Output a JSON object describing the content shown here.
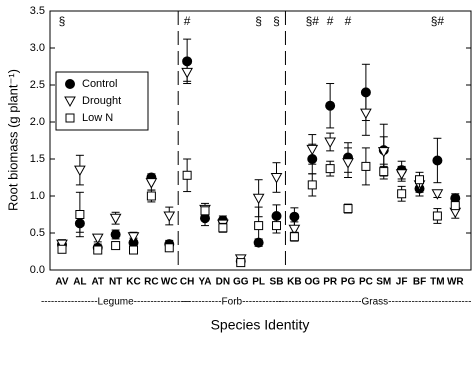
{
  "chart_data": {
    "type": "dot-error",
    "y_label": "Root biomass (g plant⁻¹)",
    "x_label": "Species Identity",
    "categories": [
      "AV",
      "AL",
      "AT",
      "NT",
      "KC",
      "RC",
      "WC",
      "CH",
      "YA",
      "DN",
      "GG",
      "PL",
      "SB",
      "KB",
      "OG",
      "PR",
      "PG",
      "PC",
      "SM",
      "JF",
      "BF",
      "TM",
      "WR"
    ],
    "series": [
      {
        "name": "Control",
        "color": "#000000",
        "marker": "circle",
        "filled": true,
        "values": [
          0.34,
          0.63,
          0.3,
          0.48,
          0.37,
          1.25,
          0.35,
          2.82,
          0.7,
          0.67,
          0.12,
          0.37,
          0.73,
          0.72,
          1.5,
          2.22,
          1.52,
          2.4,
          1.62,
          1.35,
          1.1,
          1.48,
          0.97
        ],
        "errors": [
          0.05,
          0.12,
          0.05,
          0.06,
          0.06,
          0.05,
          0.05,
          0.3,
          0.1,
          0.06,
          0.03,
          0.05,
          0.15,
          0.12,
          0.2,
          0.3,
          0.2,
          0.38,
          0.35,
          0.12,
          0.1,
          0.3,
          0.06
        ]
      },
      {
        "name": "Drought",
        "color": "#000000",
        "marker": "triangle-down",
        "filled": false,
        "values": [
          0.35,
          1.35,
          0.43,
          0.7,
          0.45,
          1.18,
          0.73,
          2.67,
          0.82,
          0.62,
          0.15,
          0.97,
          1.25,
          0.55,
          1.63,
          1.73,
          1.45,
          2.12,
          1.6,
          1.3,
          1.15,
          1.03,
          0.78
        ],
        "errors": [
          0.06,
          0.2,
          0.05,
          0.08,
          0.06,
          0.1,
          0.12,
          0.12,
          0.08,
          0.07,
          0.03,
          0.25,
          0.2,
          0.1,
          0.2,
          0.12,
          0.2,
          0.3,
          0.2,
          0.1,
          0.1,
          0.05,
          0.08
        ]
      },
      {
        "name": "Low N",
        "color": "#000000",
        "marker": "square",
        "filled": false,
        "values": [
          0.28,
          0.75,
          0.27,
          0.33,
          0.27,
          1.0,
          0.3,
          1.28,
          0.8,
          0.57,
          0.1,
          0.6,
          0.6,
          0.45,
          1.15,
          1.37,
          0.83,
          1.4,
          1.33,
          1.03,
          1.22,
          0.73,
          0.87
        ],
        "errors": [
          0.05,
          0.3,
          0.05,
          0.05,
          0.04,
          0.08,
          0.05,
          0.22,
          0.05,
          0.06,
          0.03,
          0.25,
          0.1,
          0.06,
          0.15,
          0.1,
          0.06,
          0.25,
          0.1,
          0.1,
          0.1,
          0.1,
          0.05
        ]
      }
    ],
    "annotations": [
      {
        "text": "§",
        "category": "AV"
      },
      {
        "text": "#",
        "category": "CH"
      },
      {
        "text": "§",
        "category": "PL"
      },
      {
        "text": "§",
        "category": "SB"
      },
      {
        "text": "§#",
        "category": "OG"
      },
      {
        "text": "#",
        "category": "PR"
      },
      {
        "text": "#",
        "category": "PG"
      },
      {
        "text": "§#",
        "category": "TM"
      }
    ],
    "groups": [
      {
        "label": "-----------------Legume-----------------",
        "from": "AV",
        "to": "WC"
      },
      {
        "label": "------------Forb------------",
        "from": "CH",
        "to": "SB"
      },
      {
        "label": "-------------------------Grass-------------------------",
        "from": "KB",
        "to": "WR"
      }
    ],
    "ylim": [
      0,
      3.5
    ],
    "yticks": [
      {
        "value": 0,
        "label": "0.0"
      },
      0.5,
      {
        "value": 1,
        "label": "1.0"
      },
      1.5,
      {
        "value": 2,
        "label": "2.0"
      },
      2.5,
      {
        "value": 3,
        "label": "3.0"
      },
      3.5
    ],
    "legend": "upper-left"
  }
}
